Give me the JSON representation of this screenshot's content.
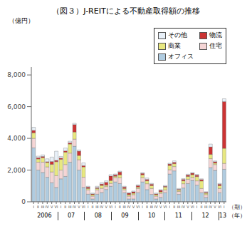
{
  "chart_data": {
    "type": "bar",
    "stacked": true,
    "title": "（図３）J-REITによる不動産取得額の推移",
    "unit_label": "（億円）",
    "x_unit_label": "（期）",
    "group_unit_label": "（年）",
    "categories": [
      "I",
      "II",
      "III",
      "IV",
      "V",
      "VI",
      "I",
      "II",
      "III",
      "IV",
      "V",
      "VI",
      "I",
      "II",
      "III",
      "IV",
      "V",
      "VI",
      "I",
      "II",
      "III",
      "IV",
      "V",
      "VI",
      "I",
      "II",
      "III",
      "IV",
      "V",
      "VI",
      "I",
      "II",
      "III",
      "IV",
      "V",
      "VI",
      "I",
      "II",
      "III",
      "IV",
      "V",
      "VI",
      "I"
    ],
    "group_labels": [
      "2006",
      "07",
      "08",
      "09",
      "10",
      "11",
      "12",
      "13"
    ],
    "group_sizes": [
      6,
      6,
      6,
      6,
      6,
      6,
      6,
      1
    ],
    "series": [
      {
        "name": "オフィス",
        "color": "#b0cce0",
        "values": [
          3400,
          2000,
          1850,
          1550,
          1200,
          900,
          1450,
          1600,
          2500,
          3500,
          2000,
          900,
          480,
          180,
          480,
          580,
          780,
          980,
          1250,
          1150,
          570,
          180,
          180,
          570,
          1250,
          770,
          470,
          180,
          270,
          570,
          1750,
          1950,
          470,
          870,
          1150,
          1350,
          1050,
          570,
          270,
          2150,
          1980,
          570,
          2050
        ]
      },
      {
        "name": "住宅",
        "color": "#f5d5d5",
        "values": [
          600,
          500,
          650,
          650,
          680,
          750,
          550,
          750,
          570,
          450,
          650,
          650,
          270,
          180,
          270,
          270,
          180,
          180,
          270,
          370,
          180,
          180,
          270,
          270,
          270,
          370,
          370,
          180,
          270,
          180,
          270,
          270,
          180,
          270,
          270,
          180,
          270,
          270,
          180,
          570,
          370,
          270,
          370
        ]
      },
      {
        "name": "商業",
        "color": "#e8e880",
        "values": [
          350,
          200,
          280,
          280,
          480,
          880,
          680,
          780,
          570,
          450,
          270,
          650,
          90,
          90,
          90,
          180,
          90,
          180,
          90,
          180,
          90,
          90,
          90,
          90,
          180,
          180,
          180,
          90,
          90,
          180,
          270,
          180,
          90,
          180,
          180,
          180,
          270,
          470,
          90,
          270,
          90,
          180,
          950
        ]
      },
      {
        "name": "物流",
        "color": "#cc3333",
        "values": [
          150,
          80,
          80,
          50,
          180,
          80,
          80,
          80,
          80,
          470,
          270,
          80,
          90,
          50,
          50,
          90,
          180,
          280,
          90,
          180,
          90,
          90,
          90,
          90,
          90,
          90,
          90,
          50,
          90,
          50,
          90,
          90,
          50,
          90,
          90,
          90,
          90,
          90,
          50,
          470,
          90,
          90,
          2950
        ]
      },
      {
        "name": "その他",
        "color": "#e8f0f8",
        "values": [
          200,
          100,
          100,
          180,
          280,
          580,
          100,
          180,
          100,
          80,
          80,
          180,
          50,
          50,
          90,
          90,
          90,
          90,
          50,
          50,
          50,
          50,
          50,
          50,
          50,
          90,
          50,
          50,
          50,
          50,
          50,
          90,
          50,
          50,
          50,
          50,
          50,
          50,
          50,
          180,
          50,
          50,
          180
        ]
      }
    ],
    "ylim": [
      0,
      8500
    ],
    "yticks": [
      0,
      {
        "value": 2000,
        "label": "2,000"
      },
      {
        "value": 4000,
        "label": "4,000"
      },
      {
        "value": 6000,
        "label": "6,000"
      },
      {
        "value": 8000,
        "label": "8,000"
      }
    ],
    "grid": false,
    "legend": "upper right"
  }
}
